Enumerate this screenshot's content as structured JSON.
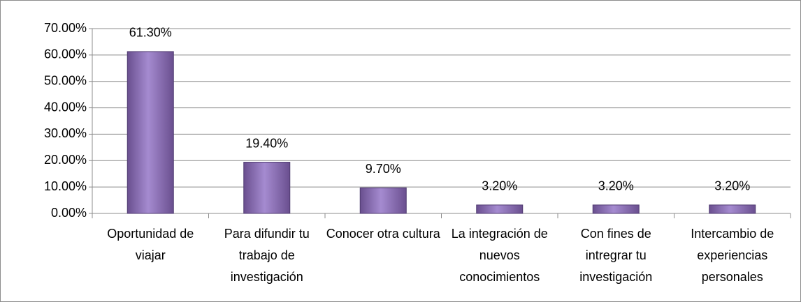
{
  "chart_data": {
    "type": "bar",
    "categories": [
      "Oportunidad de viajar",
      "Para difundir tu trabajo de investigación",
      "Conocer otra cultura",
      "La integración de nuevos conocimientos",
      "Con fines de intregrar tu investigación",
      "Intercambio de experiencias personales"
    ],
    "values": [
      61.3,
      19.4,
      9.7,
      3.2,
      3.2,
      3.2
    ],
    "value_labels": [
      "61.30%",
      "19.40%",
      "9.70%",
      "3.20%",
      "3.20%",
      "3.20%"
    ],
    "color": "#8064a2",
    "ylim": [
      0,
      70
    ],
    "yticks": [
      {
        "value": 0,
        "label": "0.00%"
      },
      {
        "value": 10,
        "label": "10.00%"
      },
      {
        "value": 20,
        "label": "20.00%"
      },
      {
        "value": 30,
        "label": "30.00%"
      },
      {
        "value": 40,
        "label": "40.00%"
      },
      {
        "value": 50,
        "label": "50.00%"
      },
      {
        "value": 60,
        "label": "60.00%"
      },
      {
        "value": 70,
        "label": "70.00%"
      }
    ],
    "grid": true
  }
}
